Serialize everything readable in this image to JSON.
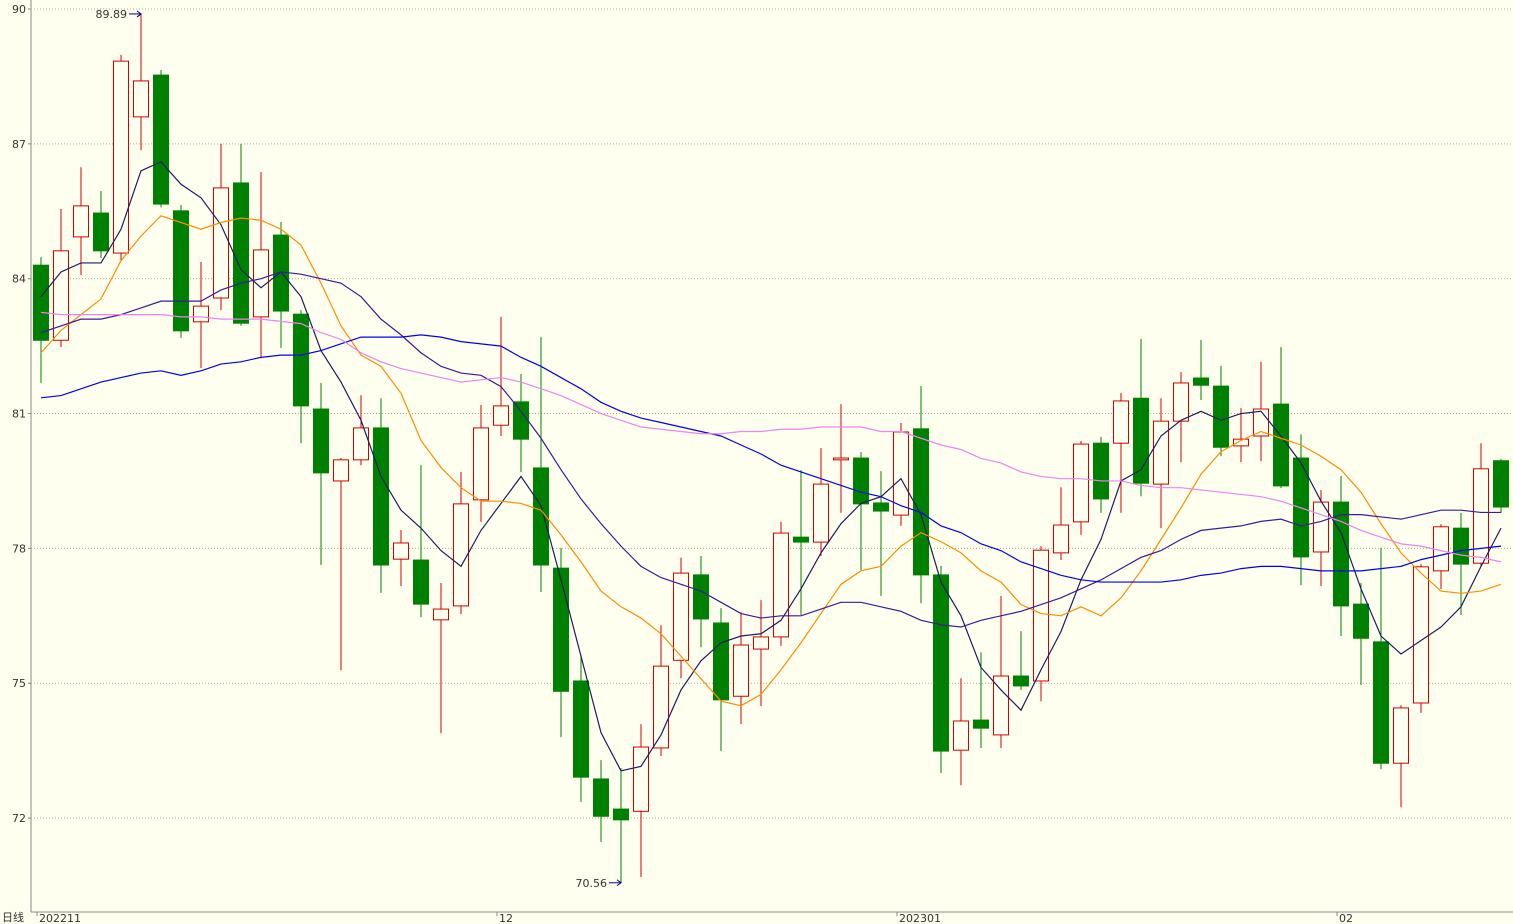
{
  "chart_data": {
    "type": "candlestick",
    "period_label": "日线",
    "categories": [
      "202211",
      null,
      null,
      null,
      null,
      null,
      null,
      null,
      null,
      null,
      null,
      null,
      null,
      null,
      null,
      null,
      null,
      null,
      null,
      null,
      null,
      null,
      null,
      "12",
      null,
      null,
      null,
      null,
      null,
      null,
      null,
      null,
      null,
      null,
      null,
      null,
      null,
      null,
      null,
      null,
      null,
      null,
      null,
      "202301",
      null,
      null,
      null,
      null,
      null,
      null,
      null,
      null,
      null,
      null,
      null,
      null,
      null,
      null,
      null,
      null,
      null,
      null,
      null,
      null,
      null,
      "02",
      null,
      null,
      null,
      null,
      null,
      null,
      null,
      null
    ],
    "open": [
      84.3,
      82.63,
      84.93,
      85.46,
      84.57,
      87.6,
      88.53,
      85.51,
      83.04,
      83.57,
      86.13,
      83.15,
      84.97,
      83.21,
      81.1,
      79.5,
      79.97,
      80.68,
      77.76,
      77.74,
      76.41,
      76.72,
      79.08,
      80.74,
      81.26,
      79.79,
      77.56,
      75.05,
      72.87,
      72.2,
      72.15,
      73.56,
      75.51,
      77.41,
      76.34,
      74.71,
      75.76,
      76.03,
      78.25,
      78.14,
      79.97,
      80.01,
      79.01,
      78.74,
      80.66,
      77.41,
      73.51,
      74.18,
      73.85,
      75.16,
      75.05,
      77.9,
      78.59,
      80.34,
      80.34,
      81.34,
      79.43,
      80.83,
      81.79,
      81.61,
      80.28,
      80.5,
      81.21,
      80.01,
      77.92,
      79.03,
      76.76,
      75.92,
      73.22,
      74.56,
      77.5,
      78.45,
      77.67,
      79.95
    ],
    "high": [
      84.48,
      85.55,
      86.48,
      85.95,
      88.98,
      89.89,
      88.64,
      85.64,
      84.37,
      87.0,
      87.0,
      86.37,
      85.26,
      83.3,
      81.68,
      80.01,
      81.41,
      81.34,
      78.41,
      79.85,
      77.23,
      79.7,
      81.19,
      83.15,
      81.88,
      82.7,
      78.01,
      75.63,
      73.29,
      73.11,
      74.09,
      76.29,
      77.79,
      77.83,
      76.67,
      76.58,
      76.85,
      78.59,
      79.74,
      80.23,
      81.21,
      80.14,
      79.72,
      80.79,
      81.61,
      77.61,
      75.11,
      75.69,
      76.94,
      76.16,
      78.05,
      79.36,
      80.39,
      80.48,
      81.46,
      82.66,
      81.34,
      81.92,
      82.64,
      82.06,
      81.12,
      82.15,
      82.48,
      80.54,
      79.3,
      79.61,
      77.23,
      78.01,
      74.51,
      77.65,
      78.54,
      78.79,
      80.34,
      79.99
    ],
    "low": [
      81.68,
      82.48,
      84.08,
      84.46,
      84.41,
      86.86,
      85.59,
      82.68,
      82.01,
      83.3,
      82.95,
      82.23,
      82.46,
      80.34,
      77.63,
      75.29,
      79.85,
      77.01,
      77.16,
      76.47,
      73.89,
      76.54,
      78.59,
      80.5,
      79.7,
      77.03,
      73.8,
      72.36,
      71.47,
      70.56,
      70.69,
      73.38,
      75.11,
      75.8,
      73.49,
      74.09,
      74.49,
      75.83,
      76.52,
      77.83,
      78.79,
      77.52,
      76.94,
      78.5,
      76.78,
      73.0,
      72.73,
      73.56,
      73.56,
      74.85,
      74.6,
      77.74,
      78.3,
      78.79,
      78.79,
      79.16,
      78.45,
      79.92,
      81.3,
      80.05,
      79.92,
      79.94,
      79.34,
      77.18,
      77.16,
      76.05,
      74.96,
      73.09,
      72.24,
      74.34,
      77.1,
      76.52,
      77.61,
      78.79
    ],
    "close": [
      82.63,
      84.62,
      85.62,
      84.62,
      88.84,
      88.4,
      85.66,
      82.84,
      83.39,
      86.02,
      83.01,
      84.64,
      83.28,
      81.17,
      79.68,
      79.97,
      80.68,
      77.63,
      78.12,
      76.76,
      76.65,
      78.99,
      80.68,
      81.17,
      80.43,
      77.63,
      74.82,
      72.91,
      72.04,
      71.96,
      73.58,
      75.38,
      77.45,
      76.43,
      74.63,
      75.85,
      76.03,
      78.34,
      78.14,
      79.43,
      80.01,
      78.99,
      78.83,
      80.59,
      77.41,
      73.49,
      74.16,
      74.0,
      75.16,
      74.94,
      77.96,
      78.52,
      80.32,
      79.1,
      81.28,
      79.45,
      80.83,
      81.68,
      81.63,
      80.25,
      80.43,
      81.1,
      79.39,
      77.81,
      79.03,
      76.72,
      76.0,
      73.22,
      74.45,
      77.59,
      78.48,
      77.65,
      79.77,
      78.92
    ],
    "up_color": "#d40000",
    "down_color": "#008000",
    "moving_averages": [
      {
        "color": "#1c1c60",
        "values": [
          83.6,
          84.15,
          84.35,
          84.35,
          85.1,
          86.4,
          86.6,
          86.1,
          85.8,
          85.2,
          84.2,
          83.8,
          84.15,
          83.6,
          82.4,
          81.7,
          80.85,
          79.6,
          78.85,
          78.45,
          77.95,
          77.6,
          78.4,
          79.0,
          79.6,
          78.95,
          77.3,
          75.6,
          73.9,
          73.05,
          73.15,
          73.85,
          74.85,
          75.5,
          75.9,
          76.05,
          76.1,
          76.4,
          77.1,
          77.9,
          78.55,
          79.0,
          79.15,
          79.55,
          78.75,
          77.25,
          76.5,
          75.35,
          74.85,
          74.4,
          75.3,
          76.15,
          77.3,
          78.2,
          79.5,
          79.75,
          80.5,
          80.85,
          81.05,
          80.85,
          81.0,
          81.05,
          80.5,
          79.9,
          79.05,
          78.35,
          77.1,
          76.05,
          75.65,
          75.95,
          76.25,
          76.7,
          77.6,
          78.45
        ]
      },
      {
        "color": "#ff8c00",
        "values": [
          82.35,
          82.85,
          83.2,
          83.55,
          84.4,
          84.95,
          85.4,
          85.25,
          85.1,
          85.25,
          85.35,
          85.3,
          85.1,
          84.75,
          83.9,
          82.95,
          82.3,
          82.05,
          81.45,
          80.4,
          79.8,
          79.35,
          79.05,
          79.05,
          79.0,
          78.85,
          78.3,
          77.7,
          77.05,
          76.7,
          76.45,
          76.1,
          75.6,
          75.1,
          74.6,
          74.5,
          74.75,
          75.3,
          75.9,
          76.55,
          77.2,
          77.5,
          77.6,
          78.05,
          78.35,
          78.15,
          77.9,
          77.5,
          77.25,
          76.75,
          76.55,
          76.5,
          76.7,
          76.5,
          76.9,
          77.5,
          78.2,
          78.9,
          79.65,
          80.15,
          80.4,
          80.6,
          80.45,
          80.3,
          80.05,
          79.75,
          79.25,
          78.55,
          77.9,
          77.45,
          77.05,
          77.0,
          77.05,
          77.2
        ]
      },
      {
        "color": "#3a1a98",
        "values": [
          82.8,
          82.95,
          83.1,
          83.1,
          83.2,
          83.35,
          83.5,
          83.5,
          83.5,
          83.75,
          83.9,
          84.0,
          84.15,
          84.1,
          84.0,
          83.9,
          83.6,
          83.1,
          82.75,
          82.35,
          82.05,
          81.9,
          81.85,
          81.6,
          81.05,
          80.45,
          79.75,
          79.1,
          78.55,
          78.05,
          77.6,
          77.35,
          77.2,
          77.05,
          76.8,
          76.55,
          76.45,
          76.5,
          76.5,
          76.65,
          76.8,
          76.8,
          76.7,
          76.6,
          76.4,
          76.3,
          76.25,
          76.4,
          76.5,
          76.6,
          76.75,
          76.9,
          77.1,
          77.3,
          77.55,
          77.8,
          77.95,
          78.2,
          78.4,
          78.45,
          78.5,
          78.6,
          78.65,
          78.5,
          78.6,
          78.75,
          78.75,
          78.7,
          78.65,
          78.75,
          78.85,
          78.85,
          78.8,
          78.8
        ]
      },
      {
        "color": "#0000ee",
        "values": [
          81.35,
          81.4,
          81.55,
          81.7,
          81.8,
          81.9,
          81.95,
          81.85,
          81.95,
          82.1,
          82.15,
          82.25,
          82.3,
          82.3,
          82.4,
          82.55,
          82.7,
          82.7,
          82.7,
          82.75,
          82.7,
          82.6,
          82.55,
          82.5,
          82.25,
          82.05,
          81.8,
          81.55,
          81.25,
          81.05,
          80.9,
          80.8,
          80.7,
          80.6,
          80.5,
          80.3,
          80.1,
          79.85,
          79.7,
          79.55,
          79.4,
          79.25,
          79.15,
          78.95,
          78.8,
          78.5,
          78.35,
          78.1,
          77.95,
          77.7,
          77.55,
          77.4,
          77.3,
          77.25,
          77.25,
          77.25,
          77.25,
          77.3,
          77.4,
          77.45,
          77.55,
          77.6,
          77.6,
          77.55,
          77.5,
          77.5,
          77.5,
          77.55,
          77.6,
          77.75,
          77.85,
          77.95,
          78.0,
          78.05
        ]
      },
      {
        "color": "#ee82ee",
        "values": [
          83.25,
          83.2,
          83.2,
          83.2,
          83.2,
          83.2,
          83.2,
          83.15,
          83.15,
          83.1,
          83.1,
          83.1,
          83.05,
          83.0,
          82.8,
          82.65,
          82.35,
          82.15,
          82.0,
          81.9,
          81.8,
          81.7,
          81.75,
          81.8,
          81.7,
          81.55,
          81.4,
          81.2,
          81.0,
          80.85,
          80.7,
          80.65,
          80.6,
          80.55,
          80.55,
          80.6,
          80.6,
          80.65,
          80.65,
          80.7,
          80.7,
          80.7,
          80.6,
          80.6,
          80.45,
          80.3,
          80.2,
          80.0,
          79.9,
          79.7,
          79.6,
          79.55,
          79.55,
          79.5,
          79.5,
          79.4,
          79.35,
          79.35,
          79.3,
          79.25,
          79.2,
          79.15,
          79.05,
          78.9,
          78.75,
          78.6,
          78.4,
          78.25,
          78.1,
          78.05,
          77.95,
          77.85,
          77.8,
          77.7
        ]
      }
    ],
    "ylim": [
      69.91,
      90
    ],
    "yticks": [
      72,
      75,
      78,
      81,
      84,
      87,
      90
    ],
    "grid": true
  }
}
